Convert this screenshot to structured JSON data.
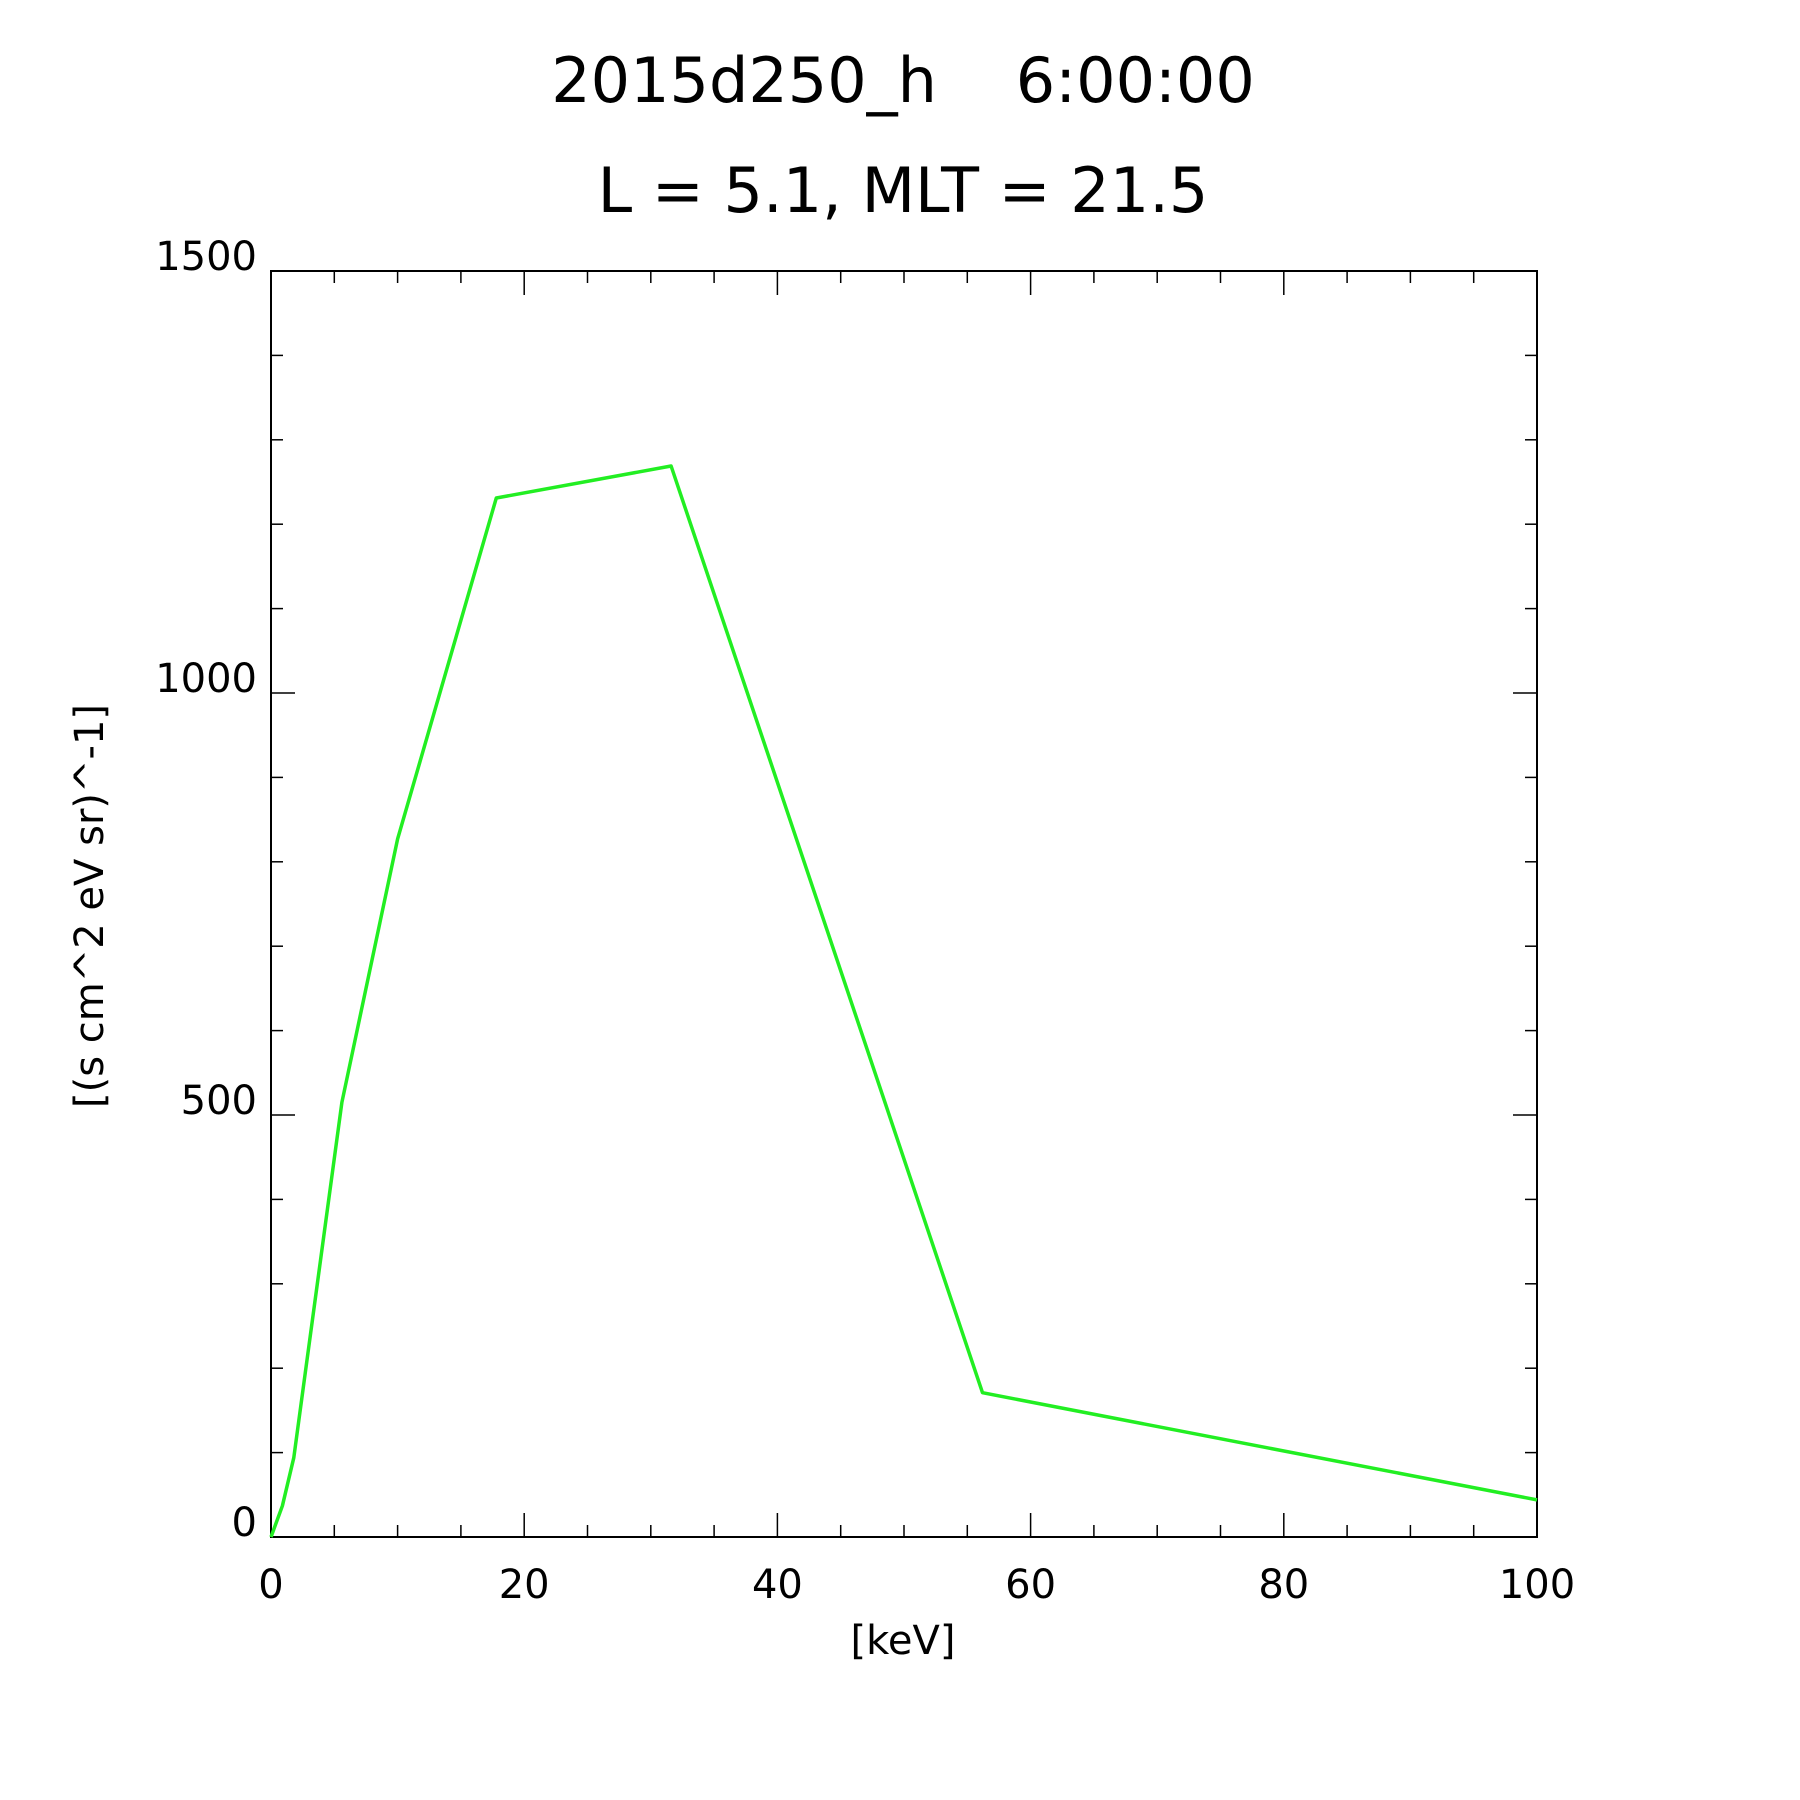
{
  "chart_data": {
    "type": "line",
    "title": "2015d250_h    6:00:00",
    "subtitle": "L = 5.1, MLT = 21.5",
    "x_label": "[keV]",
    "y_label": "[(s cm^2 eV sr)^-1]",
    "x": [
      0,
      0.9,
      1.8,
      2.7,
      5.6,
      10.0,
      17.8,
      31.6,
      56.2,
      100
    ],
    "series": [
      {
        "color": "#22ee22",
        "values": [
          0,
          37,
          94,
          194,
          515,
          827,
          1231,
          1269,
          171,
          44
        ]
      }
    ],
    "xlim": [
      0,
      100
    ],
    "ylim": [
      0,
      1500
    ],
    "xticks": [
      0,
      20,
      40,
      60,
      80,
      100
    ],
    "yticks": [
      0,
      500,
      1000,
      1500
    ],
    "xminorticks": [
      5,
      10,
      15,
      25,
      30,
      35,
      45,
      50,
      55,
      65,
      70,
      75,
      85,
      90,
      95
    ],
    "yminorticks": [
      100,
      200,
      300,
      400,
      600,
      700,
      800,
      900,
      1100,
      1200,
      1300,
      1400
    ],
    "grid": false
  }
}
